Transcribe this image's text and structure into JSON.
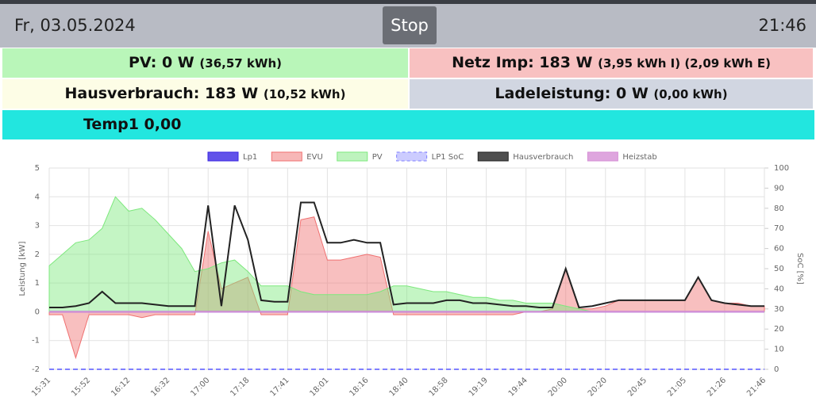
{
  "header": {
    "date": "Fr, 03.05.2024",
    "button": "Stop",
    "time": "21:46"
  },
  "tiles": {
    "pv": {
      "label": "PV: 0 W",
      "detail": "(36,57 kWh)"
    },
    "netz": {
      "label": "Netz Imp: 183 W",
      "detail": "(3,95 kWh I) (2,09 kWh E)"
    },
    "haus": {
      "label": "Hausverbrauch: 183 W",
      "detail": "(10,52 kWh)"
    },
    "lade": {
      "label": "Ladeleistung: 0 W",
      "detail": "(0,00 kWh)"
    },
    "temp": {
      "label": "Temp1 0,00"
    }
  },
  "chart_data": {
    "type": "line",
    "y_label": "Leistung [kW]",
    "y2_label": "SoC [%]",
    "x": [
      "15:31",
      null,
      null,
      "15:52",
      null,
      null,
      "16:12",
      null,
      null,
      "16:32",
      null,
      null,
      "17:00",
      null,
      null,
      "17:18",
      null,
      null,
      "17:41",
      null,
      null,
      "18:01",
      null,
      null,
      "18:16",
      null,
      null,
      "18:40",
      null,
      null,
      "18:58",
      null,
      null,
      "19:19",
      null,
      null,
      "19:44",
      null,
      null,
      "20:00",
      null,
      null,
      "20:20",
      null,
      null,
      "20:45",
      null,
      null,
      "21:05",
      null,
      null,
      "21:26",
      null,
      null,
      "21:46"
    ],
    "ylim": [
      -2,
      5
    ],
    "yticks": [
      -2,
      -1,
      0,
      1,
      2,
      3,
      4,
      5
    ],
    "y2lim": [
      0,
      100
    ],
    "y2ticks": [
      0,
      10,
      20,
      30,
      40,
      50,
      60,
      70,
      80,
      90,
      100
    ],
    "grid": true,
    "series": [
      {
        "name": "Lp1",
        "color": "#3a27e3",
        "fill": false,
        "dashed": false,
        "values": [
          0,
          0,
          0,
          0,
          0,
          0,
          0,
          0,
          0,
          0,
          0,
          0,
          0,
          0,
          0,
          0,
          0,
          0,
          0,
          0,
          0,
          0,
          0,
          0,
          0,
          0,
          0,
          0,
          0,
          0,
          0,
          0,
          0,
          0,
          0,
          0,
          0,
          0,
          0,
          0,
          0,
          0,
          0,
          0,
          0,
          0,
          0,
          0,
          0,
          0,
          0,
          0,
          0,
          0,
          0
        ]
      },
      {
        "name": "EVU",
        "color": "#f07070",
        "fill": true,
        "dashed": false,
        "values": [
          -0.1,
          -0.1,
          -1.6,
          -0.1,
          -0.1,
          -0.1,
          -0.1,
          -0.2,
          -0.1,
          -0.1,
          -0.1,
          -0.1,
          2.8,
          0.8,
          1.0,
          1.2,
          -0.1,
          -0.1,
          -0.1,
          3.2,
          3.3,
          1.8,
          1.8,
          1.9,
          2.0,
          1.9,
          -0.1,
          -0.1,
          -0.1,
          -0.1,
          -0.1,
          -0.1,
          -0.1,
          -0.1,
          -0.1,
          -0.1,
          0.0,
          0.0,
          0.1,
          1.5,
          0.1,
          0.1,
          0.2,
          0.4,
          0.4,
          0.4,
          0.4,
          0.4,
          0.4,
          1.2,
          0.4,
          0.3,
          0.3,
          0.2,
          0.2
        ]
      },
      {
        "name": "PV",
        "color": "#7de87d",
        "fill": true,
        "dashed": false,
        "values": [
          1.6,
          2.0,
          2.4,
          2.5,
          2.9,
          4.0,
          3.5,
          3.6,
          3.2,
          2.7,
          2.2,
          1.4,
          1.5,
          1.7,
          1.8,
          1.4,
          0.9,
          0.9,
          0.9,
          0.7,
          0.6,
          0.6,
          0.6,
          0.6,
          0.6,
          0.7,
          0.9,
          0.9,
          0.8,
          0.7,
          0.7,
          0.6,
          0.5,
          0.5,
          0.4,
          0.4,
          0.3,
          0.3,
          0.3,
          0.2,
          0.1,
          0,
          0,
          0,
          0,
          0,
          0,
          0,
          0,
          0,
          0,
          0,
          0,
          0,
          0
        ]
      },
      {
        "name": "LP1 SoC",
        "color": "#8080ff",
        "fill": false,
        "dashed": true,
        "axis": "y2",
        "values": [
          0,
          0,
          0,
          0,
          0,
          0,
          0,
          0,
          0,
          0,
          0,
          0,
          0,
          0,
          0,
          0,
          0,
          0,
          0,
          0,
          0,
          0,
          0,
          0,
          0,
          0,
          0,
          0,
          0,
          0,
          0,
          0,
          0,
          0,
          0,
          0,
          0,
          0,
          0,
          0,
          0,
          0,
          0,
          0,
          0,
          0,
          0,
          0,
          0,
          0,
          0,
          0,
          0,
          0,
          0
        ]
      },
      {
        "name": "Hausverbrauch",
        "color": "#222222",
        "fill": false,
        "dashed": false,
        "values": [
          0.15,
          0.15,
          0.2,
          0.3,
          0.7,
          0.3,
          0.3,
          0.3,
          0.25,
          0.2,
          0.2,
          0.2,
          3.7,
          0.2,
          3.7,
          2.5,
          0.4,
          0.35,
          0.35,
          3.8,
          3.8,
          2.4,
          2.4,
          2.5,
          2.4,
          2.4,
          0.25,
          0.3,
          0.3,
          0.3,
          0.4,
          0.4,
          0.3,
          0.3,
          0.25,
          0.2,
          0.2,
          0.15,
          0.15,
          1.5,
          0.15,
          0.2,
          0.3,
          0.4,
          0.4,
          0.4,
          0.4,
          0.4,
          0.4,
          1.2,
          0.4,
          0.3,
          0.25,
          0.2,
          0.2
        ]
      },
      {
        "name": "Heizstab",
        "color": "#d68fd6",
        "fill": false,
        "dashed": false,
        "values": [
          0,
          0,
          0,
          0,
          0,
          0,
          0,
          0,
          0,
          0,
          0,
          0,
          0,
          0,
          0,
          0,
          0,
          0,
          0,
          0,
          0,
          0,
          0,
          0,
          0,
          0,
          0,
          0,
          0,
          0,
          0,
          0,
          0,
          0,
          0,
          0,
          0,
          0,
          0,
          0,
          0,
          0,
          0,
          0,
          0,
          0,
          0,
          0,
          0,
          0,
          0,
          0,
          0,
          0,
          0
        ]
      }
    ]
  }
}
